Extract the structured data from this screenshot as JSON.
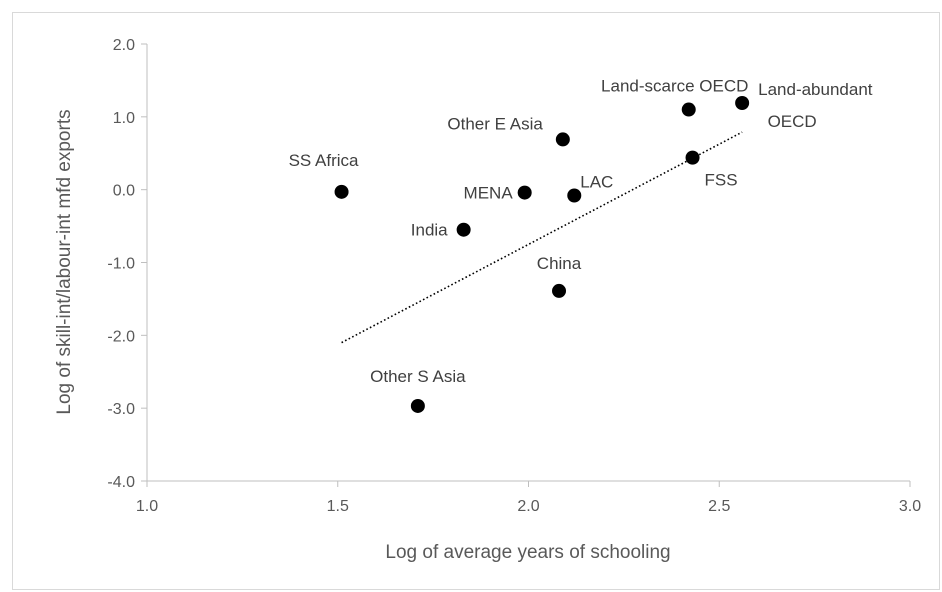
{
  "chart_data": {
    "type": "scatter",
    "title": "",
    "xlabel": "Log of average years of schooling",
    "ylabel": "Log of skill-int/labour-int mfd exports",
    "xlim": [
      1.0,
      3.0
    ],
    "ylim": [
      -4.0,
      2.0
    ],
    "x_ticks": [
      1.0,
      1.5,
      2.0,
      2.5,
      3.0
    ],
    "y_ticks": [
      2.0,
      1.0,
      0.0,
      -1.0,
      -2.0,
      -3.0,
      -4.0
    ],
    "x_tick_labels": [
      "1.0",
      "1.5",
      "2.0",
      "2.5",
      "3.0"
    ],
    "y_tick_labels": [
      "2.0",
      "1.0",
      "0.0",
      "-1.0",
      "-2.0",
      "-3.0",
      "-4.0"
    ],
    "grid": false,
    "points": [
      {
        "label": "SS Africa",
        "x": 1.51,
        "y": -0.03
      },
      {
        "label": "Other S Asia",
        "x": 1.71,
        "y": -2.97
      },
      {
        "label": "India",
        "x": 1.83,
        "y": -0.55
      },
      {
        "label": "MENA",
        "x": 1.99,
        "y": -0.04
      },
      {
        "label": "China",
        "x": 2.08,
        "y": -1.39
      },
      {
        "label": "Other E Asia",
        "x": 2.09,
        "y": 0.69
      },
      {
        "label": "LAC",
        "x": 2.12,
        "y": -0.08
      },
      {
        "label": "Land-scarce OECD",
        "x": 2.42,
        "y": 1.1
      },
      {
        "label": "FSS",
        "x": 2.43,
        "y": 0.44
      },
      {
        "label": "Land-abundant OECD",
        "x": 2.56,
        "y": 1.19
      }
    ],
    "trendline": {
      "type": "linear",
      "style": "dotted",
      "x": [
        1.51,
        2.56
      ],
      "y": [
        -2.1,
        0.79
      ]
    },
    "colors": {
      "marker": "#000000",
      "trendline": "#000000",
      "axis": "#bfbfbf",
      "text": "#595959"
    }
  }
}
